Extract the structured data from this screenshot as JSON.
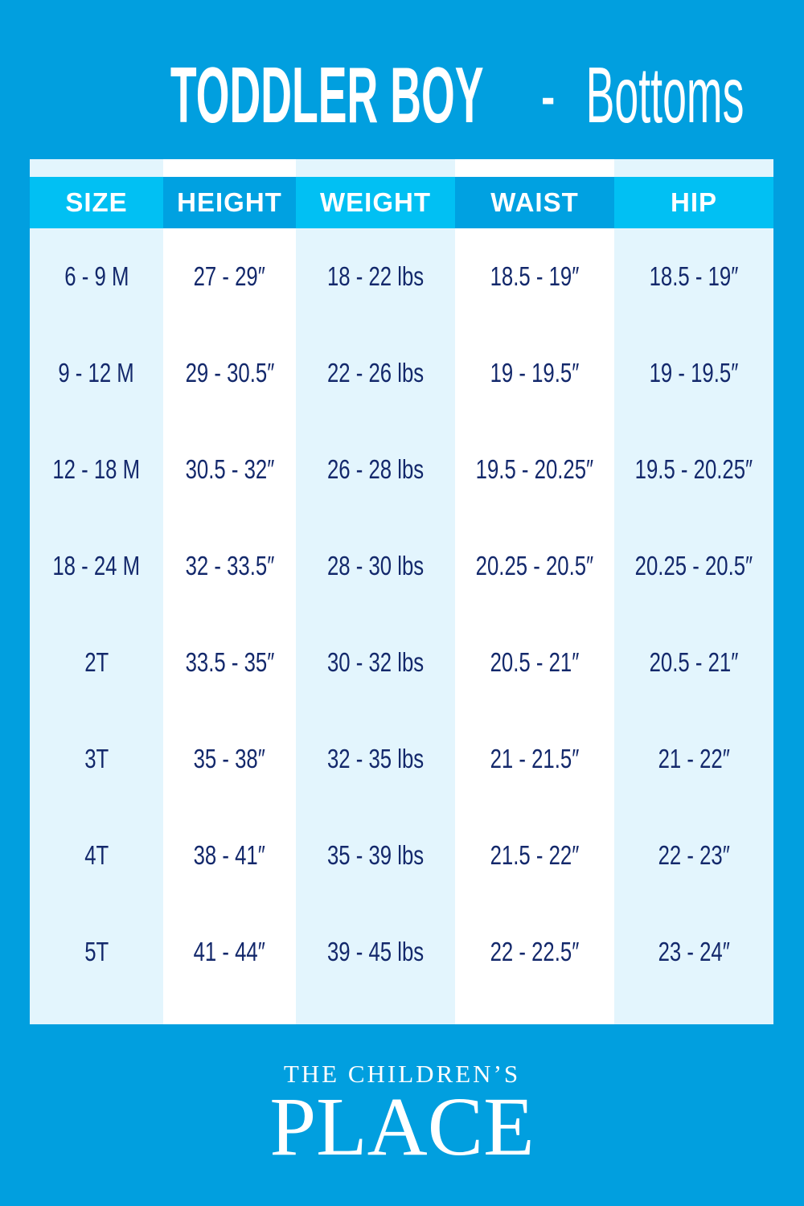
{
  "title": {
    "bold": "TODDLER BOY",
    "separator": " - ",
    "light": "Bottoms"
  },
  "table": {
    "columns": [
      "SIZE",
      "HEIGHT",
      "WEIGHT",
      "WAIST",
      "HIP"
    ],
    "rows": [
      [
        "6 - 9 M",
        "27 - 29″",
        "18 - 22 lbs",
        "18.5 - 19″",
        "18.5 - 19″"
      ],
      [
        "9 - 12 M",
        "29 - 30.5″",
        "22 - 26 lbs",
        "19 - 19.5″",
        "19 - 19.5″"
      ],
      [
        "12  - 18 M",
        "30.5 - 32″",
        "26 - 28 lbs",
        "19.5 - 20.25″",
        "19.5 - 20.25″"
      ],
      [
        "18 - 24 M",
        "32 - 33.5″",
        "28 - 30 lbs",
        "20.25 - 20.5″",
        "20.25 - 20.5″"
      ],
      [
        "2T",
        "33.5 - 35″",
        "30 - 32 lbs",
        "20.5 - 21″",
        "20.5 - 21″"
      ],
      [
        "3T",
        "35 - 38″",
        "32 - 35 lbs",
        "21 - 21.5″",
        "21 - 22″"
      ],
      [
        "4T",
        "38 - 41″",
        "35 - 39 lbs",
        "21.5 - 22″",
        "22 - 23″"
      ],
      [
        "5T",
        "41 - 44″",
        "39 - 45 lbs",
        "22 - 22.5″",
        "23 - 24″"
      ]
    ]
  },
  "logo": {
    "line1": "THE CHILDREN’S",
    "line2": "PLACE"
  },
  "colors": {
    "background": "#019fdf",
    "header_light": "#01c0f3",
    "header_dark": "#00a1e1",
    "cell_light": "#e3f5fd",
    "text": "#13286b"
  }
}
